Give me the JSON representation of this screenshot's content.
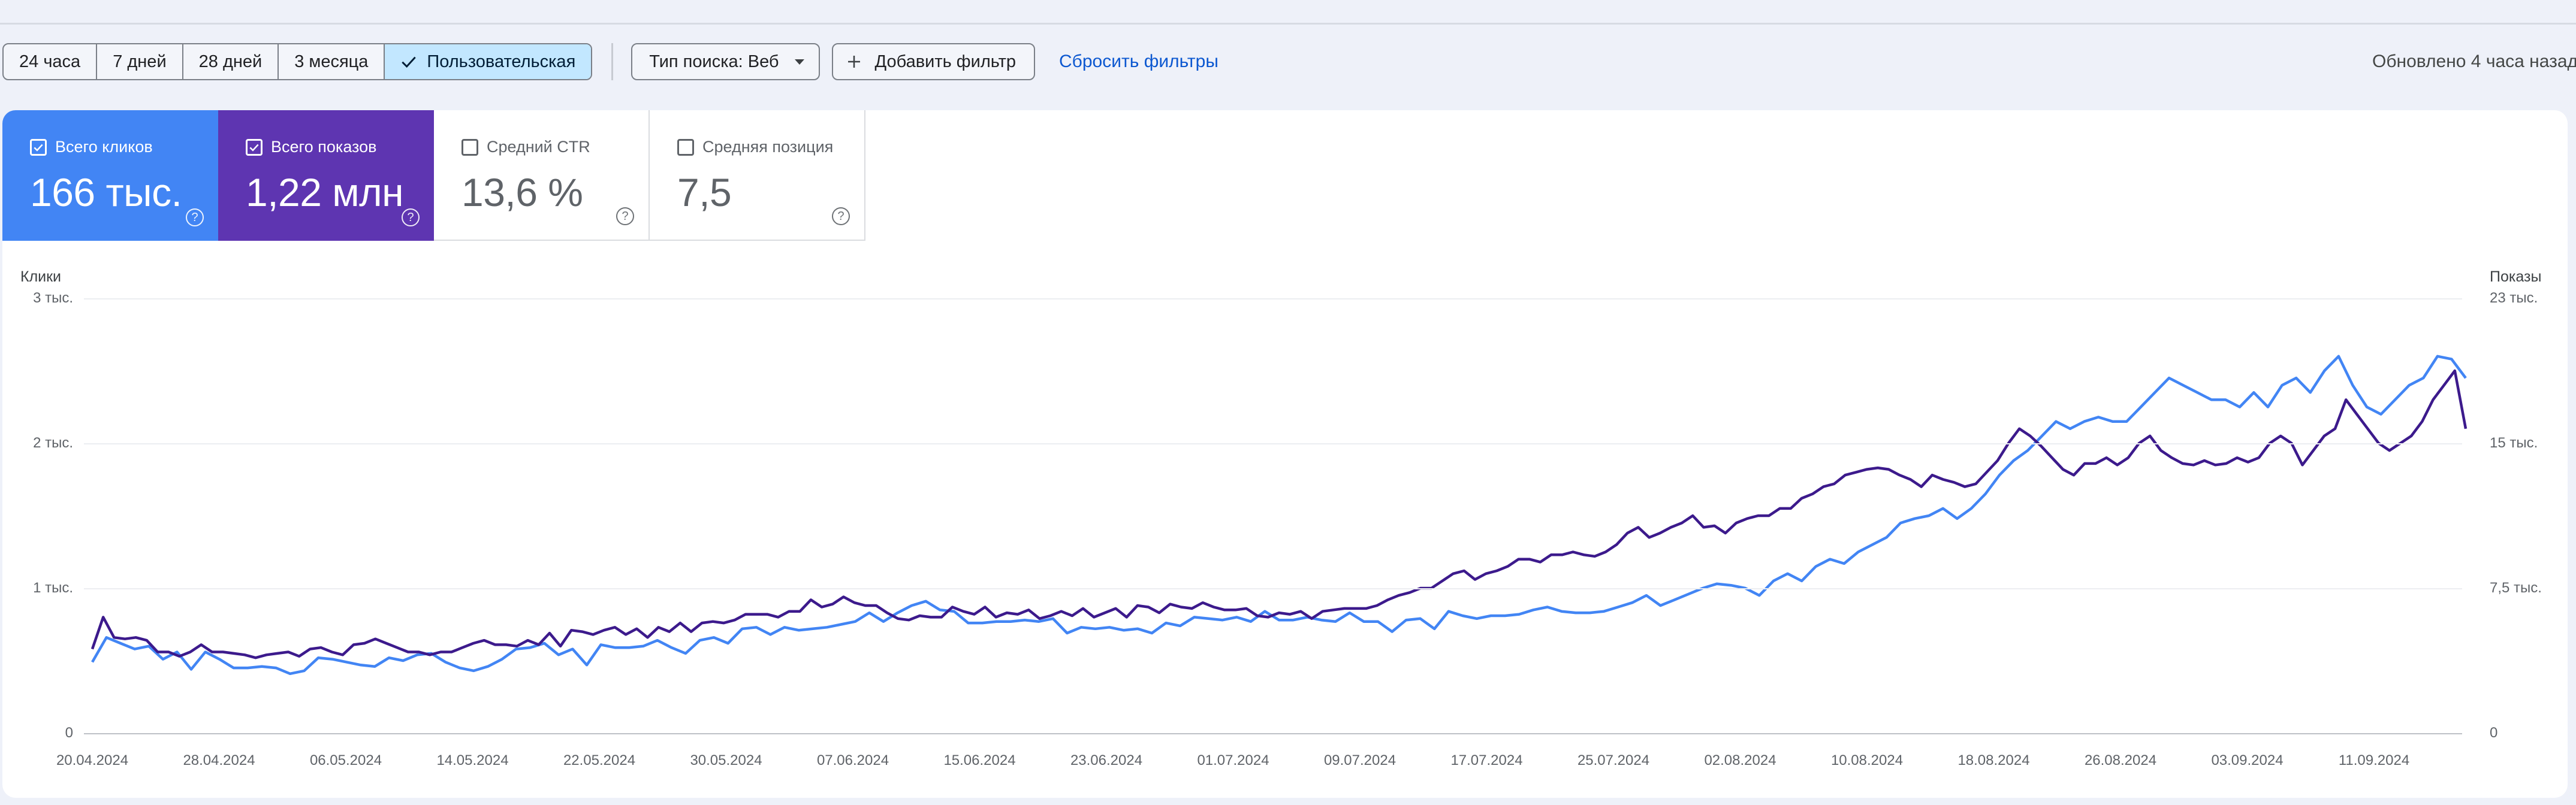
{
  "toolbar": {
    "date_ranges": [
      {
        "label": "24 часа",
        "selected": false
      },
      {
        "label": "7 дней",
        "selected": false
      },
      {
        "label": "28 дней",
        "selected": false
      },
      {
        "label": "3 месяца",
        "selected": false
      },
      {
        "label": "Пользовательская",
        "selected": true
      }
    ],
    "search_type": "Тип поиска: Веб",
    "add_filter": "Добавить фильтр",
    "reset_filters": "Сбросить фильтры",
    "updated": "Обновлено 4 часа назад"
  },
  "metrics": [
    {
      "label": "Всего кликов",
      "value": "166 тыс.",
      "checked": true,
      "color": "#4285f4"
    },
    {
      "label": "Всего показов",
      "value": "1,22 млн",
      "checked": true,
      "color": "#5e35b1"
    },
    {
      "label": "Средний CTR",
      "value": "13,6 %",
      "checked": false
    },
    {
      "label": "Средняя позиция",
      "value": "7,5",
      "checked": false
    }
  ],
  "chart_data": {
    "type": "line",
    "left_axis": {
      "title": "Клики",
      "ticks": [
        "3 тыс.",
        "2 тыс.",
        "1 тыс.",
        "0"
      ],
      "range": [
        0,
        3000
      ]
    },
    "right_axis": {
      "title": "Показы",
      "ticks": [
        "23 тыс.",
        "15 тыс.",
        "7,5 тыс.",
        "0"
      ],
      "range": [
        0,
        22500
      ]
    },
    "x_ticks": [
      "20.04.2024",
      "28.04.2024",
      "06.05.2024",
      "14.05.2024",
      "22.05.2024",
      "30.05.2024",
      "07.06.2024",
      "15.06.2024",
      "23.06.2024",
      "01.07.2024",
      "09.07.2024",
      "17.07.2024",
      "25.07.2024",
      "02.08.2024",
      "10.08.2024",
      "18.08.2024",
      "26.08.2024",
      "03.09.2024",
      "11.09.2024"
    ],
    "series": [
      {
        "name": "Всего кликов",
        "axis": "left",
        "color": "#4285f4",
        "values": [
          490,
          660,
          620,
          580,
          600,
          510,
          560,
          440,
          560,
          510,
          450,
          450,
          460,
          450,
          410,
          430,
          520,
          510,
          490,
          470,
          460,
          520,
          500,
          540,
          550,
          490,
          450,
          430,
          460,
          510,
          580,
          590,
          620,
          540,
          580,
          470,
          610,
          590,
          590,
          600,
          640,
          590,
          550,
          640,
          660,
          620,
          720,
          730,
          680,
          730,
          710,
          720,
          730,
          750,
          770,
          830,
          770,
          830,
          880,
          910,
          850,
          840,
          760,
          760,
          770,
          770,
          780,
          770,
          790,
          690,
          730,
          720,
          730,
          710,
          720,
          690,
          760,
          740,
          800,
          790,
          780,
          800,
          770,
          840,
          780,
          780,
          800,
          780,
          770,
          830,
          770,
          770,
          700,
          780,
          790,
          720,
          840,
          810,
          790,
          810,
          810,
          820,
          850,
          870,
          840,
          830,
          830,
          840,
          870,
          900,
          950,
          880,
          920,
          960,
          1000,
          1030,
          1020,
          1000,
          950,
          1050,
          1100,
          1050,
          1150,
          1200,
          1170,
          1250,
          1300,
          1350,
          1450,
          1480,
          1500,
          1550,
          1480,
          1550,
          1650,
          1780,
          1880,
          1950,
          2050,
          2150,
          2100,
          2150,
          2180,
          2150,
          2150,
          2250,
          2350,
          2450,
          2400,
          2350,
          2300,
          2300,
          2250,
          2350,
          2250,
          2400,
          2450,
          2350,
          2500,
          2600,
          2400,
          2250,
          2200,
          2300,
          2400,
          2450,
          2600,
          2580,
          2450
        ]
      },
      {
        "name": "Всего показов",
        "axis": "left",
        "color": "#3c1a8c",
        "values": [
          580,
          800,
          660,
          650,
          660,
          640,
          560,
          560,
          530,
          560,
          610,
          560,
          560,
          550,
          540,
          520,
          540,
          550,
          560,
          530,
          580,
          590,
          560,
          540,
          610,
          620,
          650,
          620,
          590,
          560,
          560,
          540,
          560,
          560,
          590,
          620,
          640,
          610,
          610,
          600,
          640,
          610,
          690,
          600,
          710,
          700,
          680,
          710,
          730,
          680,
          720,
          660,
          730,
          700,
          760,
          700,
          760,
          770,
          760,
          780,
          820,
          820,
          820,
          800,
          840,
          840,
          920,
          870,
          890,
          940,
          900,
          880,
          880,
          830,
          790,
          780,
          810,
          800,
          800,
          870,
          840,
          820,
          870,
          800,
          830,
          820,
          850,
          790,
          810,
          840,
          810,
          860,
          800,
          830,
          860,
          800,
          880,
          870,
          830,
          890,
          870,
          860,
          900,
          870,
          850,
          850,
          860,
          810,
          800,
          830,
          820,
          840,
          790,
          840,
          850,
          860,
          860,
          860,
          880,
          920,
          950,
          970,
          1000,
          1000,
          1050,
          1100,
          1120,
          1060,
          1100,
          1120,
          1150,
          1200,
          1200,
          1180,
          1230,
          1230,
          1250,
          1230,
          1220,
          1250,
          1300,
          1380,
          1420,
          1350,
          1380,
          1420,
          1450,
          1500,
          1420,
          1430,
          1380,
          1450,
          1480,
          1500,
          1500,
          1550,
          1550,
          1620,
          1650,
          1700,
          1720,
          1780,
          1800,
          1820,
          1830,
          1820,
          1780,
          1750,
          1700,
          1780,
          1750,
          1730,
          1700,
          1720,
          1800,
          1880,
          2000,
          2100,
          2050,
          1980,
          1900,
          1820,
          1780,
          1860,
          1860,
          1900,
          1850,
          1900,
          2000,
          2050,
          1950,
          1900,
          1860,
          1850,
          1880,
          1850,
          1860,
          1900,
          1870,
          1900,
          2000,
          2050,
          2000,
          1850,
          1950,
          2050,
          2100,
          2300,
          2200,
          2100,
          2000,
          1950,
          2000,
          2050,
          2150,
          2300,
          2400,
          2500,
          2100
        ]
      }
    ]
  }
}
